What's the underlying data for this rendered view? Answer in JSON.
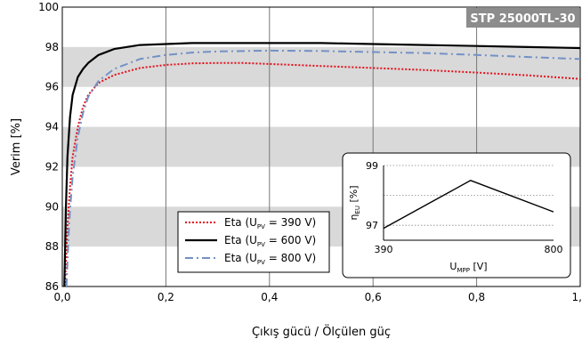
{
  "chart_data": [
    {
      "type": "line",
      "badge": "STP 25000TL-30",
      "xlabel": "Çıkış gücü / Ölçülen güç",
      "ylabel": "Verim [%]",
      "xlim": [
        0,
        1
      ],
      "ylim": [
        86,
        100
      ],
      "x_ticks": [
        "0,0",
        "0,2",
        "0,4",
        "0,6",
        "0,8",
        "1,0"
      ],
      "y_ticks": [
        "86",
        "88",
        "90",
        "92",
        "94",
        "96",
        "98",
        "100"
      ],
      "grid": "vertical lines at x ticks, alternating grey horizontal bands",
      "legend_position": "bottom-center",
      "series": [
        {
          "name": "Eta (UPV = 390 V)",
          "name_main": "Eta (U",
          "name_sub": "PV",
          "name_tail": " = 390 V)",
          "color": "#e3101a",
          "style": "dotted",
          "x": [
            0.005,
            0.01,
            0.015,
            0.02,
            0.03,
            0.04,
            0.05,
            0.07,
            0.1,
            0.15,
            0.2,
            0.25,
            0.3,
            0.35,
            0.4,
            0.5,
            0.6,
            0.7,
            0.8,
            0.9,
            1.0
          ],
          "y": [
            86.0,
            89.0,
            91.0,
            92.5,
            94.0,
            95.0,
            95.6,
            96.2,
            96.6,
            96.95,
            97.1,
            97.18,
            97.2,
            97.2,
            97.15,
            97.05,
            96.95,
            96.85,
            96.72,
            96.58,
            96.4
          ]
        },
        {
          "name": "Eta (UPV = 600 V)",
          "name_main": "Eta (U",
          "name_sub": "PV",
          "name_tail": " = 600 V)",
          "color": "#000000",
          "style": "solid",
          "x": [
            0.004,
            0.007,
            0.01,
            0.015,
            0.02,
            0.03,
            0.04,
            0.05,
            0.07,
            0.1,
            0.15,
            0.2,
            0.25,
            0.3,
            0.4,
            0.5,
            0.6,
            0.7,
            0.8,
            0.9,
            1.0
          ],
          "y": [
            86.0,
            90.0,
            92.5,
            94.5,
            95.6,
            96.5,
            96.9,
            97.2,
            97.6,
            97.9,
            98.1,
            98.15,
            98.2,
            98.2,
            98.2,
            98.2,
            98.15,
            98.1,
            98.05,
            98.0,
            97.95
          ]
        },
        {
          "name": "Eta (UPV = 800 V)",
          "name_main": "Eta (U",
          "name_sub": "PV",
          "name_tail": " = 800 V)",
          "color": "#7391c6",
          "style": "dashdot",
          "x": [
            0.008,
            0.012,
            0.015,
            0.02,
            0.03,
            0.04,
            0.05,
            0.07,
            0.1,
            0.15,
            0.2,
            0.25,
            0.3,
            0.4,
            0.5,
            0.6,
            0.7,
            0.8,
            0.9,
            1.0
          ],
          "y": [
            86.0,
            88.5,
            89.8,
            91.5,
            93.5,
            94.7,
            95.5,
            96.3,
            96.9,
            97.4,
            97.6,
            97.72,
            97.78,
            97.82,
            97.8,
            97.75,
            97.7,
            97.6,
            97.5,
            97.4
          ]
        }
      ]
    },
    {
      "type": "line",
      "xlabel": "UMPP [V]",
      "xlabel_main": "U",
      "xlabel_sub": "MPP",
      "xlabel_tail": " [V]",
      "ylabel": "ηEU [%]",
      "ylabel_main": "η",
      "ylabel_sub": "EU",
      "ylabel_tail": " [%]",
      "xlim": [
        390,
        800
      ],
      "ylim": [
        96.5,
        99
      ],
      "x_ticks": [
        "390",
        "800"
      ],
      "y_ticks": [
        "97",
        "99"
      ],
      "grid": "dotted horizontal lines",
      "series": [
        {
          "color": "#000000",
          "x": [
            390,
            600,
            800
          ],
          "y": [
            96.9,
            98.5,
            97.45
          ]
        }
      ]
    }
  ]
}
